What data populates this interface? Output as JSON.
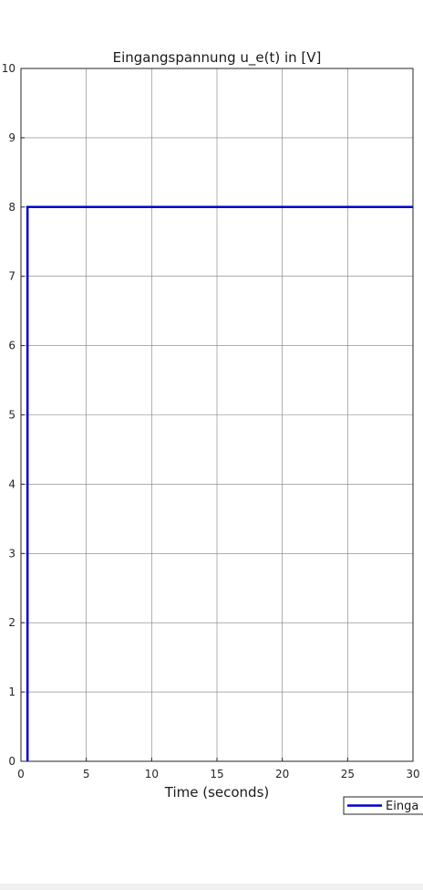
{
  "chart_data": {
    "type": "line",
    "title": "Eingangspannung u_e(t) in [V]",
    "xlabel": "Time (seconds)",
    "ylabel": "",
    "xlim": [
      0,
      30
    ],
    "ylim": [
      0,
      10
    ],
    "xticks": [
      0,
      5,
      10,
      15,
      20,
      25,
      30
    ],
    "yticks": [
      0,
      1,
      2,
      3,
      4,
      5,
      6,
      7,
      8,
      9,
      10
    ],
    "grid": true,
    "legend_position": "bottom-right",
    "legend_text": "Einga",
    "series": [
      {
        "color": "#0000cc",
        "x": [
          0.5,
          0.5,
          30
        ],
        "y": [
          0,
          8,
          8
        ]
      }
    ]
  }
}
